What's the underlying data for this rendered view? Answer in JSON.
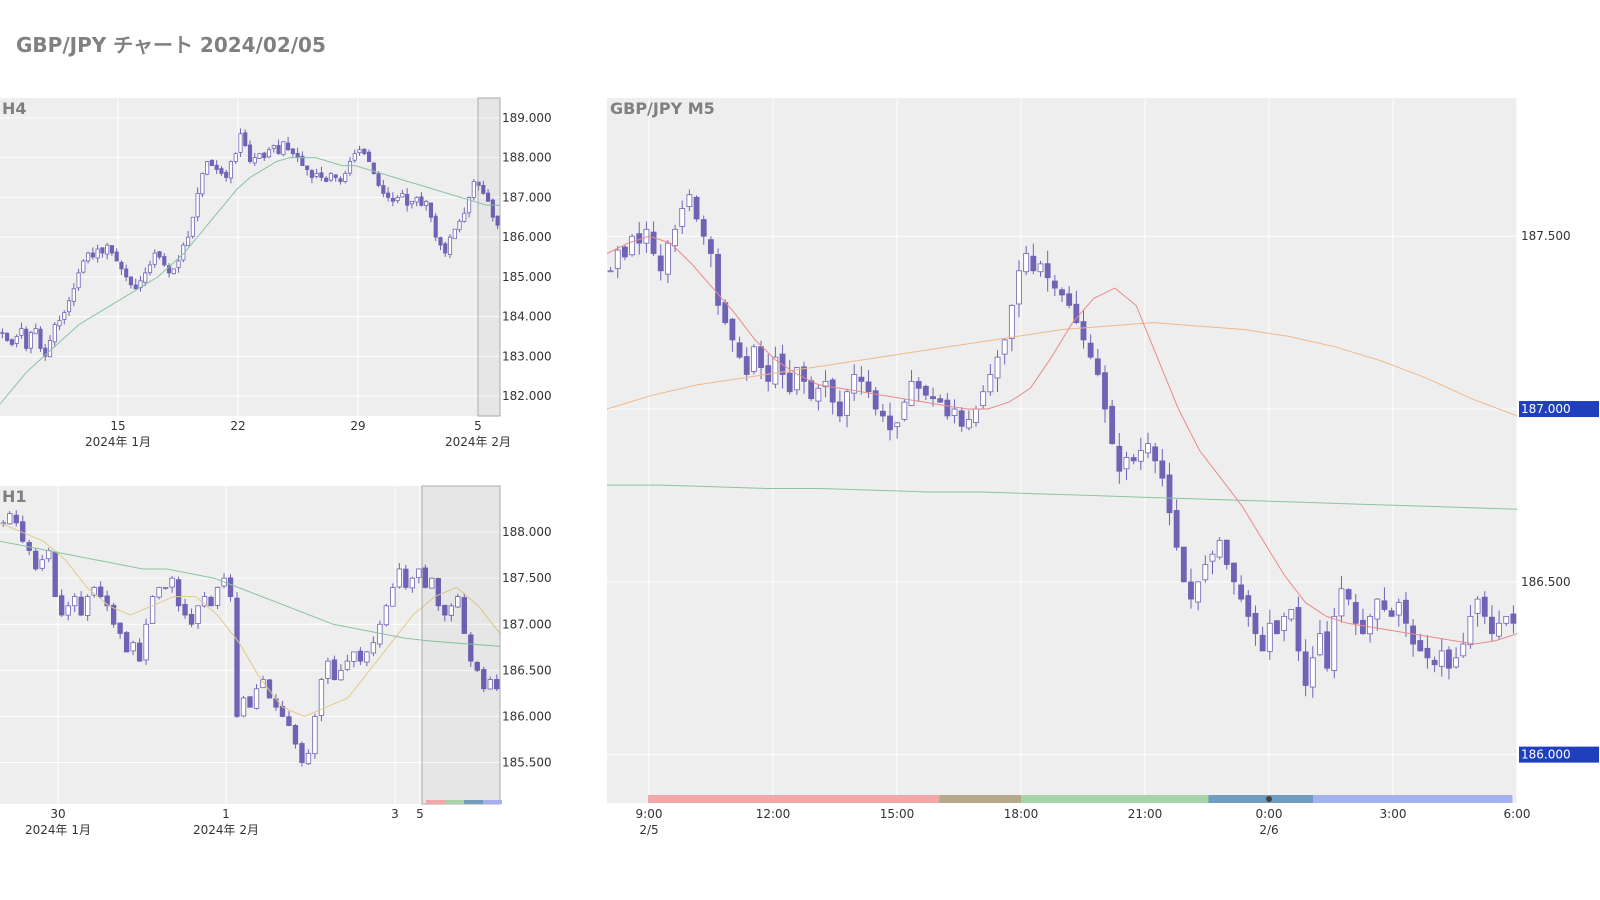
{
  "page": {
    "title": "GBP/JPY チャート 2024/02/05"
  },
  "colors": {
    "candle": "#6f63b5",
    "plot_bg": "#eeeeee",
    "grid": "#ffffff",
    "axis_text": "#333333",
    "title_text": "#808080",
    "price_badge": "#1f3fbf"
  },
  "chart_data": [
    {
      "id": "h4",
      "type": "candlestick",
      "title": "H4",
      "ylim": [
        181.5,
        189.5
      ],
      "y_ticks": [
        "182.000",
        "183.000",
        "184.000",
        "185.000",
        "186.000",
        "187.000",
        "188.000",
        "189.000"
      ],
      "x_ticks": [
        {
          "day": "15",
          "month": "2024年 1月"
        },
        {
          "day": "22",
          "month": ""
        },
        {
          "day": "29",
          "month": ""
        },
        {
          "day": "5",
          "month": "2024年 2月"
        }
      ],
      "closes": [
        183.6,
        183.4,
        183.3,
        183.5,
        183.7,
        183.2,
        183.6,
        183.7,
        183.2,
        183.0,
        183.4,
        183.8,
        183.9,
        184.1,
        184.4,
        184.7,
        185.1,
        185.4,
        185.6,
        185.5,
        185.7,
        185.6,
        185.8,
        185.6,
        185.4,
        185.2,
        185.0,
        184.8,
        184.7,
        184.9,
        185.1,
        185.3,
        185.6,
        185.5,
        185.3,
        185.1,
        185.2,
        185.4,
        185.8,
        186.0,
        186.5,
        187.1,
        187.6,
        187.9,
        187.8,
        187.7,
        187.6,
        187.5,
        187.9,
        188.1,
        188.6,
        188.3,
        187.9,
        188.0,
        188.1,
        188.0,
        188.2,
        188.3,
        188.1,
        188.4,
        188.2,
        188.1,
        188.0,
        187.8,
        187.7,
        187.5,
        187.6,
        187.5,
        187.4,
        187.6,
        187.5,
        187.4,
        187.6,
        187.9,
        188.1,
        188.2,
        188.1,
        187.9,
        187.6,
        187.3,
        187.1,
        187.0,
        186.9,
        187.0,
        187.1,
        186.8,
        186.9,
        187.0,
        186.8,
        186.9,
        186.5,
        186.0,
        185.8,
        185.6,
        186.0,
        186.2,
        186.4,
        186.6,
        187.0,
        187.4,
        187.3,
        187.1,
        186.9,
        186.5,
        186.3
      ],
      "ma_slow": [
        181.8,
        182.2,
        182.6,
        182.9,
        183.2,
        183.5,
        183.8,
        184.0,
        184.2,
        184.4,
        184.6,
        184.8,
        185.0,
        185.3,
        185.6,
        186.0,
        186.4,
        186.8,
        187.2,
        187.5,
        187.7,
        187.9,
        188.0,
        188.0,
        188.0,
        187.9,
        187.8,
        187.8,
        187.7,
        187.6,
        187.5,
        187.4,
        187.3,
        187.2,
        187.1,
        187.0,
        186.9,
        186.8,
        186.8
      ]
    },
    {
      "id": "h1",
      "type": "candlestick",
      "title": "H1",
      "ylim": [
        185.05,
        188.5
      ],
      "y_ticks": [
        "185.500",
        "186.000",
        "186.500",
        "187.000",
        "187.500",
        "188.000"
      ],
      "x_ticks": [
        {
          "day": "30",
          "month": "2024年 1月"
        },
        {
          "day": "1",
          "month": "2024年 2月"
        },
        {
          "day": "3",
          "month": ""
        },
        {
          "day": "5",
          "month": ""
        }
      ],
      "closes": [
        188.1,
        188.2,
        188.1,
        187.9,
        187.8,
        187.6,
        187.7,
        187.8,
        187.3,
        187.1,
        187.2,
        187.3,
        187.1,
        187.3,
        187.4,
        187.3,
        187.2,
        187.0,
        186.9,
        186.7,
        186.8,
        186.6,
        187.0,
        187.3,
        187.4,
        187.4,
        187.5,
        187.2,
        187.1,
        187.0,
        187.2,
        187.3,
        187.2,
        187.4,
        187.5,
        187.3,
        186.0,
        186.2,
        186.1,
        186.3,
        186.4,
        186.2,
        186.1,
        186.0,
        185.9,
        185.7,
        185.5,
        185.6,
        186.0,
        186.4,
        186.6,
        186.4,
        186.5,
        186.6,
        186.7,
        186.6,
        186.7,
        186.8,
        187.0,
        187.2,
        187.4,
        187.6,
        187.4,
        187.5,
        187.6,
        187.4,
        187.5,
        187.2,
        187.1,
        187.2,
        187.3,
        186.9,
        186.6,
        186.5,
        186.3,
        186.4,
        186.3
      ],
      "ma_fast": [
        188.1,
        188.0,
        187.9,
        187.7,
        187.4,
        187.2,
        187.1,
        187.2,
        187.3,
        187.3,
        187.1,
        186.8,
        186.4,
        186.1,
        186.0,
        186.1,
        186.2,
        186.5,
        186.8,
        187.1,
        187.3,
        187.4,
        187.2,
        186.9
      ],
      "ma_slow": [
        187.9,
        187.85,
        187.8,
        187.75,
        187.7,
        187.65,
        187.6,
        187.6,
        187.55,
        187.5,
        187.4,
        187.3,
        187.2,
        187.1,
        187.0,
        186.95,
        186.9,
        186.85,
        186.82,
        186.8,
        186.78,
        186.76
      ]
    },
    {
      "id": "m5",
      "type": "candlestick",
      "title": "GBP/JPY M5",
      "ylim": [
        185.86,
        187.9
      ],
      "y_ticks": [
        "186.000",
        "186.500",
        "187.000",
        "187.500"
      ],
      "highlight_ticks": [
        "186.000",
        "187.000"
      ],
      "x_ticks": [
        {
          "time": "9:00",
          "date": "2/5"
        },
        {
          "time": "12:00",
          "date": ""
        },
        {
          "time": "15:00",
          "date": ""
        },
        {
          "time": "18:00",
          "date": ""
        },
        {
          "time": "21:00",
          "date": ""
        },
        {
          "time": "0:00",
          "date": "2/6"
        },
        {
          "time": "3:00",
          "date": ""
        },
        {
          "time": "6:00",
          "date": ""
        }
      ],
      "closes": [
        187.4,
        187.46,
        187.44,
        187.5,
        187.48,
        187.52,
        187.45,
        187.4,
        187.48,
        187.52,
        187.58,
        187.62,
        187.55,
        187.5,
        187.45,
        187.3,
        187.25,
        187.2,
        187.15,
        187.1,
        187.18,
        187.12,
        187.08,
        187.15,
        187.1,
        187.05,
        187.12,
        187.08,
        187.03,
        187.06,
        187.08,
        187.02,
        186.98,
        187.05,
        187.1,
        187.08,
        187.05,
        187.0,
        186.98,
        186.94,
        186.96,
        187.02,
        187.08,
        187.06,
        187.04,
        187.03,
        187.02,
        186.98,
        187.0,
        186.95,
        186.97,
        187.0,
        187.05,
        187.1,
        187.15,
        187.2,
        187.3,
        187.4,
        187.45,
        187.4,
        187.42,
        187.38,
        187.35,
        187.33,
        187.3,
        187.25,
        187.2,
        187.15,
        187.1,
        187.0,
        186.9,
        186.82,
        186.86,
        186.85,
        186.88,
        186.9,
        186.85,
        186.8,
        186.7,
        186.6,
        186.5,
        186.45,
        186.5,
        186.55,
        186.58,
        186.62,
        186.55,
        186.5,
        186.45,
        186.4,
        186.35,
        186.3,
        186.38,
        186.35,
        186.4,
        186.42,
        186.3,
        186.2,
        186.28,
        186.35,
        186.25,
        186.4,
        186.48,
        186.45,
        186.38,
        186.35,
        186.4,
        186.45,
        186.42,
        186.4,
        186.44,
        186.38,
        186.32,
        186.3,
        186.28,
        186.26,
        186.3,
        186.25,
        186.28,
        186.32,
        186.4,
        186.45,
        186.4,
        186.35,
        186.38,
        186.4,
        186.38
      ],
      "ma_fast": [
        187.45,
        187.48,
        187.5,
        187.48,
        187.42,
        187.35,
        187.28,
        187.2,
        187.14,
        187.1,
        187.07,
        187.06,
        187.05,
        187.04,
        187.03,
        187.02,
        187.01,
        187.0,
        187.0,
        187.02,
        187.06,
        187.15,
        187.25,
        187.32,
        187.35,
        187.3,
        187.15,
        187.0,
        186.88,
        186.8,
        186.72,
        186.62,
        186.52,
        186.44,
        186.4,
        186.38,
        186.37,
        186.36,
        186.35,
        186.34,
        186.33,
        186.32,
        186.33,
        186.35
      ],
      "ma_mid": [
        187.0,
        187.04,
        187.07,
        187.09,
        187.11,
        187.13,
        187.15,
        187.17,
        187.19,
        187.21,
        187.23,
        187.24,
        187.25,
        187.24,
        187.23,
        187.21,
        187.18,
        187.14,
        187.09,
        187.03,
        186.98
      ],
      "ma_slow": [
        186.78,
        186.78,
        186.775,
        186.77,
        186.77,
        186.765,
        186.76,
        186.76,
        186.755,
        186.75,
        186.745,
        186.74,
        186.735,
        186.73,
        186.725,
        186.72,
        186.715,
        186.71
      ],
      "sessions": [
        {
          "name": "tokyo",
          "color": "#f2a7a9",
          "start": 0.045,
          "end": 0.365
        },
        {
          "name": "overlap",
          "color": "#b5a88b",
          "start": 0.365,
          "end": 0.455
        },
        {
          "name": "london",
          "color": "#a6d3a7",
          "start": 0.455,
          "end": 0.661
        },
        {
          "name": "ny-overlap",
          "color": "#6f9cbf",
          "start": 0.661,
          "end": 0.776
        },
        {
          "name": "newyork",
          "color": "#a3b1ef",
          "start": 0.776,
          "end": 0.995
        }
      ]
    }
  ]
}
